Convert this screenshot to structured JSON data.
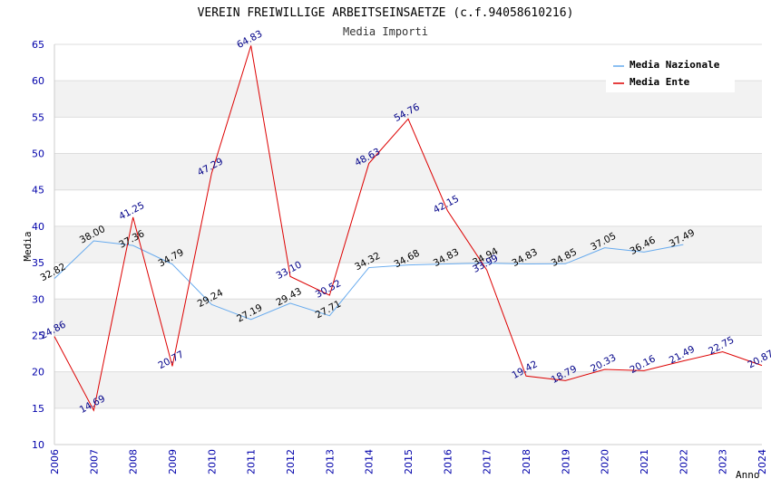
{
  "chart_data": {
    "type": "line",
    "title": "VEREIN FREIWILLIGE ARBEITSEINSAETZE (c.f.94058610216)",
    "subtitle": "Media Importi",
    "xlabel": "Anno",
    "ylabel": "Media",
    "ylim": [
      10,
      65
    ],
    "yticks": [
      10,
      15,
      20,
      25,
      30,
      35,
      40,
      45,
      50,
      55,
      60,
      65
    ],
    "x": [
      "2006",
      "2007",
      "2008",
      "2009",
      "2010",
      "2011",
      "2012",
      "2013",
      "2014",
      "2015",
      "2016",
      "2017",
      "2018",
      "2019",
      "2020",
      "2021",
      "2022",
      "2023",
      "2024"
    ],
    "legend_position": "top-right",
    "grid": "alternating horizontal bands",
    "series": [
      {
        "name": "Media Nazionale",
        "color": "#66aaee",
        "label_color": "#000000",
        "values": [
          32.82,
          38.0,
          37.36,
          34.79,
          29.24,
          27.19,
          29.43,
          27.71,
          34.32,
          34.68,
          34.83,
          34.94,
          34.83,
          34.85,
          37.05,
          36.46,
          37.49,
          null,
          null
        ],
        "labels": [
          "32.82",
          "38.00",
          "37.36",
          "34.79",
          "29.24",
          "27.19",
          "29.43",
          "27.71",
          "34.32",
          "34.68",
          "34.83",
          "34.94",
          "34.83",
          "34.85",
          "37.05",
          "36.46",
          "37.49",
          null,
          null
        ]
      },
      {
        "name": "Media Ente",
        "color": "#dd0000",
        "label_color": "#000088",
        "values": [
          24.86,
          14.69,
          41.25,
          20.77,
          47.29,
          64.83,
          33.1,
          30.52,
          48.63,
          54.76,
          42.15,
          33.99,
          19.42,
          18.79,
          20.33,
          20.16,
          21.49,
          22.75,
          20.87
        ],
        "labels": [
          "24.86",
          "14.69",
          "41.25",
          "20.77",
          "47.29",
          "64.83",
          "33.10",
          "30.52",
          "48.63",
          "54.76",
          "42.15",
          "33.99",
          "19.42",
          "18.79",
          "20.33",
          "20.16",
          "21.49",
          "22.75",
          "20.87"
        ]
      }
    ]
  }
}
